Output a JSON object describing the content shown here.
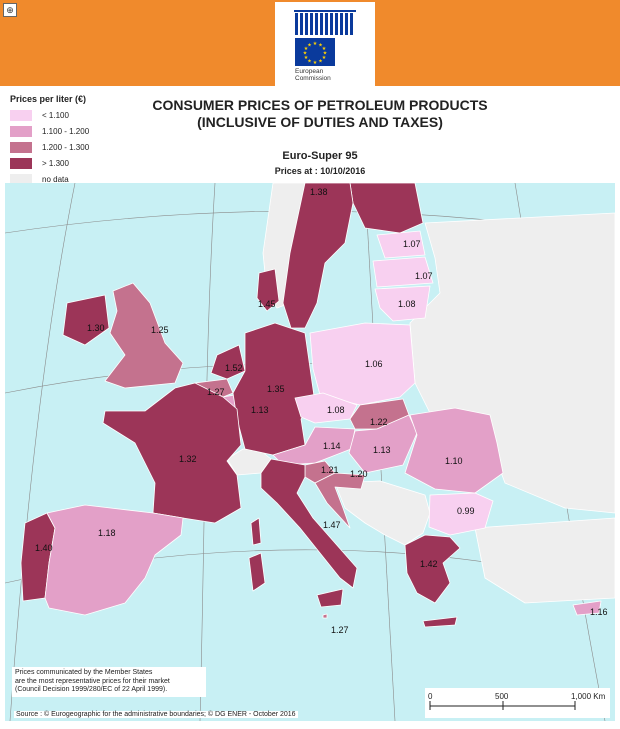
{
  "header": {
    "logo_text_line1": "European",
    "logo_text_line2": "Commission",
    "banner_color": "#f08a2c",
    "zoom_icon": "zoom-icon",
    "zoom_glyph": "⊕"
  },
  "legend": {
    "title": "Prices per liter (€)",
    "items": [
      {
        "label": "< 1.100",
        "color": "#f8d0f0"
      },
      {
        "label": "1.100 - 1.200",
        "color": "#e3a0c8"
      },
      {
        "label": "1.200 - 1.300",
        "color": "#c4728e"
      },
      {
        "label": "> 1.300",
        "color": "#9c3558"
      },
      {
        "label": "no data",
        "color": "#eeeeee"
      }
    ]
  },
  "title_line1": "CONSUMER PRICES OF PETROLEUM PRODUCTS",
  "title_line2": "(INCLUSIVE OF DUTIES AND TAXES)",
  "subtitle": "Euro-Super 95",
  "date_line": "Prices at : 10/10/2016",
  "map_colors": {
    "sea": "#c8f0f4",
    "grid": "#8a8a8a",
    "border": "#ffffff",
    "no_data": "#eeeeee"
  },
  "countries": [
    {
      "id": "sweden",
      "price": "1.38"
    },
    {
      "id": "finland",
      "price": ""
    },
    {
      "id": "estonia",
      "price": "1.07"
    },
    {
      "id": "latvia",
      "price": "1.07"
    },
    {
      "id": "lithuania",
      "price": "1.08"
    },
    {
      "id": "denmark",
      "price": "1.45"
    },
    {
      "id": "ireland",
      "price": "1.30"
    },
    {
      "id": "uk",
      "price": "1.25"
    },
    {
      "id": "netherlands",
      "price": "1.52"
    },
    {
      "id": "belgium",
      "price": "1.27"
    },
    {
      "id": "luxembourg",
      "price": "1.13"
    },
    {
      "id": "germany",
      "price": "1.35"
    },
    {
      "id": "poland",
      "price": "1.06"
    },
    {
      "id": "czechia",
      "price": "1.08"
    },
    {
      "id": "slovakia",
      "price": "1.22"
    },
    {
      "id": "austria",
      "price": "1.14"
    },
    {
      "id": "hungary",
      "price": "1.13"
    },
    {
      "id": "slovenia",
      "price": "1.21"
    },
    {
      "id": "croatia",
      "price": "1.20"
    },
    {
      "id": "romania",
      "price": "1.10"
    },
    {
      "id": "bulgaria",
      "price": "0.99"
    },
    {
      "id": "france",
      "price": "1.32"
    },
    {
      "id": "italy",
      "price": "1.47"
    },
    {
      "id": "portugal",
      "price": "1.40"
    },
    {
      "id": "spain",
      "price": "1.18"
    },
    {
      "id": "greece",
      "price": "1.42"
    },
    {
      "id": "malta",
      "price": "1.27"
    },
    {
      "id": "cyprus",
      "price": "1.16"
    }
  ],
  "note_line1": "Prices communicated by the Member States",
  "note_line2": "are the most representative prices for their market",
  "note_line3": "(Council Decision 1999/280/EC of 22 April 1999).",
  "source": "Source : © Eurogeographic for the administrative boundaries;   © DG ENER - October 2016",
  "scale": {
    "ticks": [
      "0",
      "500",
      "1,000 Km"
    ]
  }
}
